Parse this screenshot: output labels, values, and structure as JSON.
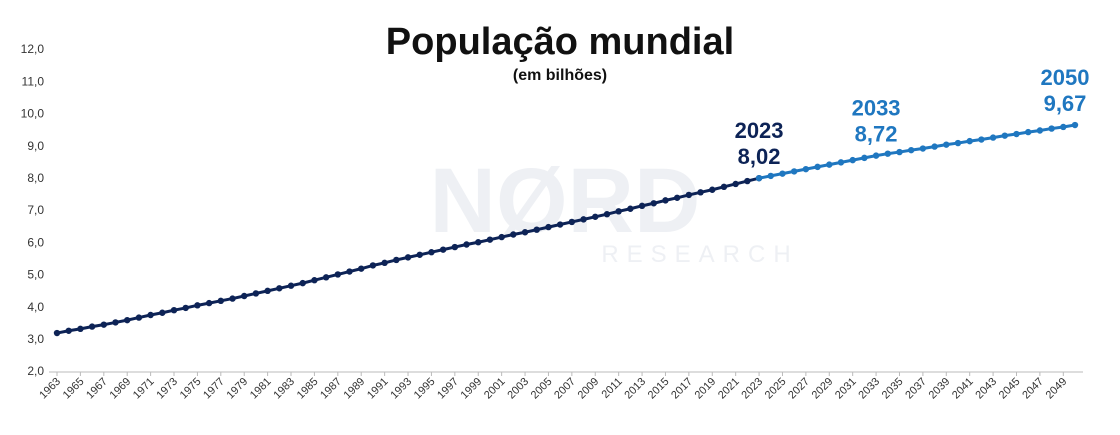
{
  "chart_data": {
    "type": "line",
    "title": "População mundial",
    "subtitle": "(em bilhões)",
    "watermark": [
      "NØRD",
      "RESEARCH"
    ],
    "series": [
      {
        "color": "#0d2356",
        "x": [
          1963,
          1964,
          1965,
          1966,
          1967,
          1968,
          1969,
          1970,
          1971,
          1972,
          1973,
          1974,
          1975,
          1976,
          1977,
          1978,
          1979,
          1980,
          1981,
          1982,
          1983,
          1984,
          1985,
          1986,
          1987,
          1988,
          1989,
          1990,
          1991,
          1992,
          1993,
          1994,
          1995,
          1996,
          1997,
          1998,
          1999,
          2000,
          2001,
          2002,
          2003,
          2004,
          2005,
          2006,
          2007,
          2008,
          2009,
          2010,
          2011,
          2012,
          2013,
          2014,
          2015,
          2016,
          2017,
          2018,
          2019,
          2020,
          2021,
          2022,
          2023
        ],
        "values": [
          3.21,
          3.28,
          3.34,
          3.41,
          3.47,
          3.54,
          3.61,
          3.69,
          3.77,
          3.84,
          3.92,
          3.99,
          4.07,
          4.14,
          4.21,
          4.28,
          4.36,
          4.44,
          4.52,
          4.6,
          4.68,
          4.76,
          4.85,
          4.94,
          5.03,
          5.12,
          5.21,
          5.31,
          5.39,
          5.48,
          5.56,
          5.64,
          5.72,
          5.8,
          5.88,
          5.96,
          6.03,
          6.11,
          6.19,
          6.27,
          6.34,
          6.42,
          6.5,
          6.58,
          6.66,
          6.74,
          6.82,
          6.9,
          6.99,
          7.07,
          7.16,
          7.24,
          7.33,
          7.41,
          7.5,
          7.58,
          7.66,
          7.75,
          7.84,
          7.93,
          8.02
        ]
      },
      {
        "color": "#1f77c0",
        "x": [
          2023,
          2024,
          2025,
          2026,
          2027,
          2028,
          2029,
          2030,
          2031,
          2032,
          2033,
          2034,
          2035,
          2036,
          2037,
          2038,
          2039,
          2040,
          2041,
          2042,
          2043,
          2044,
          2045,
          2046,
          2047,
          2048,
          2049,
          2050
        ],
        "values": [
          8.02,
          8.09,
          8.16,
          8.23,
          8.3,
          8.37,
          8.44,
          8.51,
          8.58,
          8.65,
          8.72,
          8.78,
          8.83,
          8.89,
          8.94,
          9.0,
          9.06,
          9.11,
          9.17,
          9.22,
          9.28,
          9.34,
          9.39,
          9.45,
          9.5,
          9.56,
          9.61,
          9.67
        ]
      }
    ],
    "annotations": [
      {
        "x": 2023,
        "value": 8.02,
        "value_label": "8,02",
        "color": "#0d2356"
      },
      {
        "x": 2033,
        "value": 8.72,
        "value_label": "8,72",
        "color": "#1f77c0"
      },
      {
        "x": 2050,
        "value": 9.67,
        "value_label": "9,67",
        "color": "#1f77c0"
      }
    ],
    "xlim": [
      1963,
      2050
    ],
    "xticks": [
      1963,
      1965,
      1967,
      1969,
      1971,
      1973,
      1975,
      1977,
      1979,
      1981,
      1983,
      1985,
      1987,
      1989,
      1991,
      1993,
      1995,
      1997,
      1999,
      2001,
      2003,
      2005,
      2007,
      2009,
      2011,
      2013,
      2015,
      2017,
      2019,
      2021,
      2023,
      2025,
      2027,
      2029,
      2031,
      2033,
      2035,
      2037,
      2039,
      2041,
      2043,
      2045,
      2047,
      2049
    ],
    "ylim": [
      2,
      12
    ],
    "yticks": [
      {
        "value": 2,
        "label": "2,0"
      },
      {
        "value": 3,
        "label": "3,0"
      },
      {
        "value": 4,
        "label": "4,0"
      },
      {
        "value": 5,
        "label": "5,0"
      },
      {
        "value": 6,
        "label": "6,0"
      },
      {
        "value": 7,
        "label": "7,0"
      },
      {
        "value": 8,
        "label": "8,0"
      },
      {
        "value": 9,
        "label": "9,0"
      },
      {
        "value": 10,
        "label": "10,0"
      },
      {
        "value": 11,
        "label": "11,0"
      },
      {
        "value": 12,
        "label": "12,0"
      }
    ]
  }
}
